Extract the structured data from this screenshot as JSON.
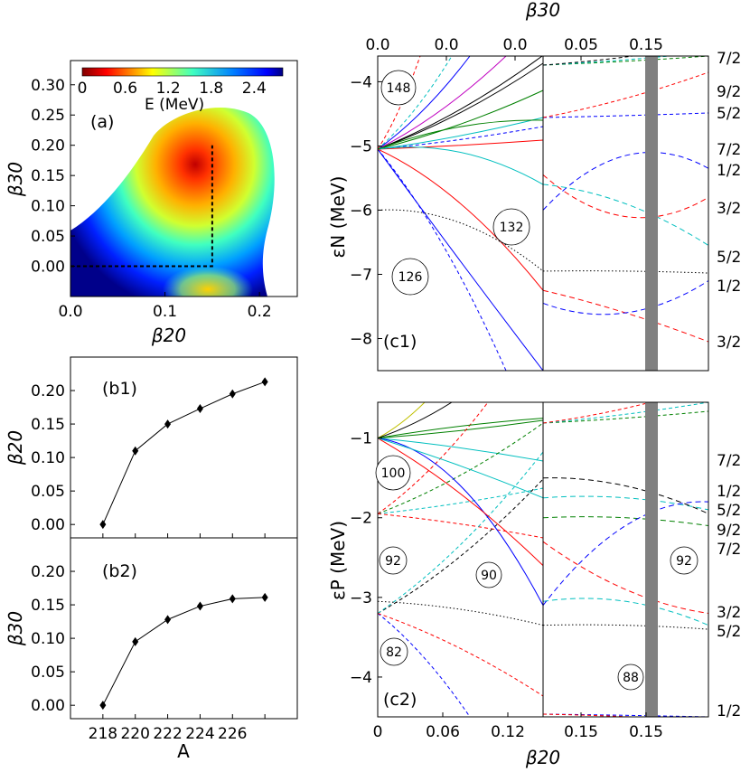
{
  "chart_data": [
    {
      "id": "a",
      "type": "heatmap",
      "panel_label": "(a)",
      "xlabel": "β20",
      "ylabel": "β30",
      "xlim": [
        0.0,
        0.24
      ],
      "ylim": [
        -0.05,
        0.34
      ],
      "xticks": [
        "0.0",
        "0.1",
        "0.2"
      ],
      "yticks": [
        "0.00",
        "0.05",
        "0.10",
        "0.15",
        "0.20",
        "0.25",
        "0.30"
      ],
      "colorbar": {
        "label": "E (MeV)",
        "ticks": [
          "0",
          "0.6",
          "1.2",
          "1.8",
          "2.4"
        ],
        "range": [
          0,
          2.8
        ],
        "colormap": "jet"
      },
      "minimum": {
        "beta20": 0.15,
        "beta30": 0.13
      },
      "path": {
        "x": [
          0.0,
          0.15,
          0.15
        ],
        "y": [
          0.0,
          0.0,
          0.2
        ]
      }
    },
    {
      "id": "b1",
      "type": "line",
      "panel_label": "(b1)",
      "ylabel": "β20",
      "ylim": [
        -0.02,
        0.25
      ],
      "yticks": [
        "0.00",
        "0.05",
        "0.10",
        "0.15",
        "0.20"
      ],
      "x": [
        218,
        220,
        222,
        224,
        226,
        228
      ],
      "y": [
        0.0,
        0.11,
        0.15,
        0.173,
        0.195,
        0.213
      ]
    },
    {
      "id": "b2",
      "type": "line",
      "panel_label": "(b2)",
      "xlabel": "A",
      "ylabel": "β30",
      "xlim": [
        216,
        230
      ],
      "ylim": [
        -0.02,
        0.25
      ],
      "xticks": [
        "218",
        "220",
        "222",
        "224",
        "226"
      ],
      "yticks": [
        "0.00",
        "0.05",
        "0.10",
        "0.15",
        "0.20"
      ],
      "x": [
        218,
        220,
        222,
        224,
        226,
        228
      ],
      "y": [
        0.0,
        0.095,
        0.128,
        0.148,
        0.159,
        0.161
      ]
    },
    {
      "id": "c1",
      "type": "line",
      "panel_label": "(c1)",
      "ylabel": "εN (MeV)",
      "top_xlabel": "β30",
      "top_ticks": [
        "0.0",
        "0.0",
        "0.0",
        "0.05",
        "0.15"
      ],
      "ylim": [
        -8.5,
        -3.6
      ],
      "yticks": [
        "−4",
        "−5",
        "−6",
        "−7",
        "−8"
      ],
      "magic_numbers": [
        "148",
        "132",
        "126"
      ],
      "right_labels": [
        "7/2",
        "9/2",
        "5/2",
        "7/2",
        "1/2",
        "3/2",
        "5/2",
        "1/2",
        "3/2"
      ],
      "series": [
        {
          "color": "#0000ff",
          "style": "solid",
          "left": [
            -5.05,
            -6.8,
            -8.5
          ],
          "right": []
        },
        {
          "color": "#ff0000",
          "style": "solid",
          "left": [
            -5.05,
            -5.9,
            -7.25
          ],
          "right": []
        },
        {
          "color": "#00bfbf",
          "style": "solid",
          "left": [
            -5.05,
            -5.1,
            -5.6
          ],
          "right": []
        },
        {
          "color": "#008000",
          "style": "solid",
          "left": [
            -5.05,
            -4.7,
            -4.6
          ],
          "right": []
        },
        {
          "color": "#000000",
          "style": "dotted",
          "left": [
            -6.0,
            -6.2,
            -6.95
          ],
          "right": [
            -6.95,
            -6.95,
            -6.98
          ]
        },
        {
          "color": "#ff0000",
          "style": "dashed",
          "left": [],
          "right": [
            -5.45,
            -6.1,
            -5.8
          ]
        },
        {
          "color": "#0000ff",
          "style": "dashed",
          "left": [],
          "right": [
            -6.0,
            -5.15,
            -5.35
          ]
        },
        {
          "color": "#00bfbf",
          "style": "dashed",
          "left": [],
          "right": [
            -5.6,
            -5.9,
            -6.55
          ]
        },
        {
          "color": "#ff0000",
          "style": "dashed",
          "left": [],
          "right": [
            -7.25,
            -7.6,
            -8.05
          ]
        },
        {
          "color": "#0000ff",
          "style": "dashed",
          "left": [],
          "right": [
            -7.45,
            -7.6,
            -7.1
          ]
        }
      ]
    },
    {
      "id": "c2",
      "type": "line",
      "panel_label": "(c2)",
      "xlabel": "β20",
      "ylabel": "εP (MeV)",
      "ylim": [
        -4.5,
        -0.55
      ],
      "yticks": [
        "−1",
        "−2",
        "−3",
        "−4"
      ],
      "xticks": [
        "0",
        "0.06",
        "0.12",
        "0.15",
        "0.15"
      ],
      "magic_numbers": [
        "100",
        "92",
        "90",
        "92",
        "82",
        "88"
      ],
      "right_labels": [
        "7/2",
        "1/2",
        "5/2",
        "9/2",
        "7/2",
        "3/2",
        "5/2",
        "1/2"
      ],
      "series": [
        {
          "color": "#0000ff",
          "style": "solid",
          "left": [
            -1.0,
            -1.6,
            -3.1
          ],
          "right": []
        },
        {
          "color": "#ff0000",
          "style": "solid",
          "left": [
            -1.0,
            -1.7,
            -2.6
          ],
          "right": []
        },
        {
          "color": "#00bfbf",
          "style": "solid",
          "left": [
            -1.0,
            -1.35,
            -1.75
          ],
          "right": []
        },
        {
          "color": "#008000",
          "style": "solid",
          "left": [
            -1.0,
            -0.85,
            -0.75
          ],
          "right": []
        },
        {
          "color": "#000000",
          "style": "dotted",
          "left": [
            -3.05,
            -3.15,
            -3.35
          ],
          "right": [
            -3.35,
            -3.35,
            -3.4
          ]
        },
        {
          "color": "#00bfbf",
          "style": "dashed",
          "left": [],
          "right": [
            -1.75,
            -1.75,
            -1.9
          ]
        },
        {
          "color": "#000000",
          "style": "dashed",
          "left": [],
          "right": [
            -1.5,
            -1.6,
            -1.95
          ]
        },
        {
          "color": "#008000",
          "style": "dashed",
          "left": [],
          "right": [
            -2.0,
            -2.0,
            -2.1
          ]
        },
        {
          "color": "#ff0000",
          "style": "dashed",
          "left": [],
          "right": [
            -2.3,
            -2.9,
            -3.2
          ]
        },
        {
          "color": "#00bfbf",
          "style": "dashed",
          "left": [],
          "right": [
            -3.05,
            -3.05,
            -3.35
          ]
        },
        {
          "color": "#0000ff",
          "style": "dashed",
          "left": [],
          "right": [
            -3.1,
            -2.1,
            -1.8
          ]
        }
      ]
    }
  ]
}
